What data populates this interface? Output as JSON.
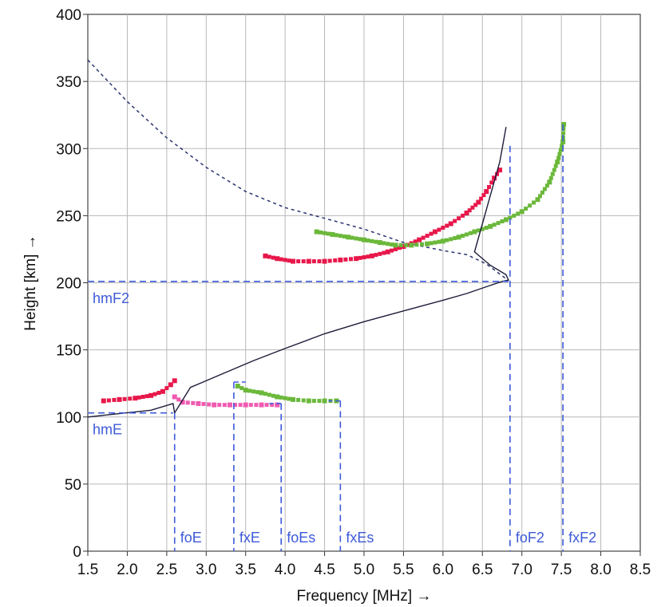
{
  "chart_data": {
    "type": "scatter",
    "xlabel": "Frequency [MHz] →",
    "ylabel": "Height  [km] →",
    "xlim": [
      1.5,
      8.5
    ],
    "ylim": [
      0,
      400
    ],
    "grid": true,
    "x_ticks": [
      "1.5",
      "2.0",
      "2.5",
      "3.0",
      "3.5",
      "4.0",
      "4.5",
      "5.0",
      "5.5",
      "6.0",
      "6.5",
      "7.0",
      "7.5",
      "8.0",
      "8.5"
    ],
    "y_ticks": [
      "0",
      "50",
      "100",
      "150",
      "200",
      "250",
      "300",
      "350",
      "400"
    ],
    "colors": {
      "o_trace": "#e8174a",
      "x_trace": "#6bb83a",
      "e_layer": "#f05ab0",
      "profile": "#1c1c3a",
      "markers": "#3d5ad8",
      "grid": "#b8b8b8"
    },
    "series": [
      {
        "marker": "o-trace",
        "points": [
          [
            3.75,
            220
          ],
          [
            3.9,
            218
          ],
          [
            4.1,
            216
          ],
          [
            4.3,
            216
          ],
          [
            4.5,
            216
          ],
          [
            4.7,
            217
          ],
          [
            4.9,
            218
          ],
          [
            5.1,
            220
          ],
          [
            5.3,
            223
          ],
          [
            5.5,
            227
          ],
          [
            5.7,
            232
          ],
          [
            5.9,
            238
          ],
          [
            6.1,
            244
          ],
          [
            6.3,
            252
          ],
          [
            6.45,
            260
          ],
          [
            6.55,
            268
          ],
          [
            6.65,
            278
          ],
          [
            6.72,
            284
          ],
          [
            1.7,
            112
          ],
          [
            1.9,
            113
          ],
          [
            2.1,
            114
          ],
          [
            2.3,
            116
          ],
          [
            2.45,
            119
          ],
          [
            2.55,
            124
          ],
          [
            2.6,
            127
          ]
        ]
      },
      {
        "marker": "x-trace",
        "points": [
          [
            4.4,
            238
          ],
          [
            4.6,
            236
          ],
          [
            4.8,
            234
          ],
          [
            5.0,
            232
          ],
          [
            5.2,
            230
          ],
          [
            5.4,
            228
          ],
          [
            5.6,
            228
          ],
          [
            5.8,
            229
          ],
          [
            6.0,
            231
          ],
          [
            6.2,
            234
          ],
          [
            6.4,
            238
          ],
          [
            6.6,
            242
          ],
          [
            6.8,
            247
          ],
          [
            7.0,
            253
          ],
          [
            7.2,
            262
          ],
          [
            7.35,
            275
          ],
          [
            7.45,
            290
          ],
          [
            7.52,
            305
          ],
          [
            7.53,
            318
          ],
          [
            3.4,
            123
          ],
          [
            3.5,
            120
          ],
          [
            3.7,
            118
          ],
          [
            3.9,
            115
          ],
          [
            4.1,
            113
          ],
          [
            4.3,
            112
          ],
          [
            4.5,
            112
          ],
          [
            4.65,
            112
          ]
        ]
      },
      {
        "marker": "e-layer",
        "points": [
          [
            2.6,
            115
          ],
          [
            2.7,
            111
          ],
          [
            2.9,
            110
          ],
          [
            3.1,
            109
          ],
          [
            3.3,
            109
          ],
          [
            3.5,
            109
          ],
          [
            3.7,
            109
          ],
          [
            3.9,
            109
          ]
        ]
      }
    ],
    "profile_curve": [
      [
        1.5,
        100
      ],
      [
        2.3,
        105
      ],
      [
        2.58,
        110
      ],
      [
        2.6,
        103
      ],
      [
        2.8,
        122
      ],
      [
        3.2,
        132
      ],
      [
        3.6,
        142
      ],
      [
        4.0,
        151
      ],
      [
        4.5,
        162
      ],
      [
        5.0,
        171
      ],
      [
        5.5,
        179
      ],
      [
        6.0,
        187
      ],
      [
        6.3,
        192
      ],
      [
        6.55,
        197
      ],
      [
        6.75,
        201
      ],
      [
        6.83,
        202
      ],
      [
        6.8,
        206
      ],
      [
        6.6,
        213
      ],
      [
        6.4,
        223
      ],
      [
        6.5,
        244
      ],
      [
        6.6,
        265
      ],
      [
        6.72,
        290
      ],
      [
        6.8,
        316
      ]
    ],
    "dashed_curve": [
      [
        1.5,
        366
      ],
      [
        2.0,
        335
      ],
      [
        2.5,
        308
      ],
      [
        3.0,
        286
      ],
      [
        3.5,
        268
      ],
      [
        4.0,
        256
      ],
      [
        4.5,
        248
      ],
      [
        5.0,
        240
      ],
      [
        5.5,
        230
      ],
      [
        6.0,
        224
      ],
      [
        6.3,
        221
      ],
      [
        6.55,
        214
      ],
      [
        6.8,
        203
      ]
    ],
    "annotations": [
      {
        "label": "hmF2",
        "kind": "height",
        "value": 201,
        "from": 1.5,
        "to": 6.83
      },
      {
        "label": "hmE",
        "kind": "height",
        "value": 103,
        "from": 1.5,
        "to": 2.58
      },
      {
        "label": "foE",
        "kind": "freq",
        "value": 2.6,
        "h": 103
      },
      {
        "label": "fxE",
        "kind": "freq",
        "value": 3.35,
        "h": 126
      },
      {
        "label": "foEs",
        "kind": "freq",
        "value": 3.95,
        "h": 110
      },
      {
        "label": "fxEs",
        "kind": "freq",
        "value": 4.7,
        "h": 112
      },
      {
        "label": "foF2",
        "kind": "freq",
        "value": 6.85,
        "h": 302
      },
      {
        "label": "fxF2",
        "kind": "freq",
        "value": 7.52,
        "h": 318
      }
    ]
  }
}
